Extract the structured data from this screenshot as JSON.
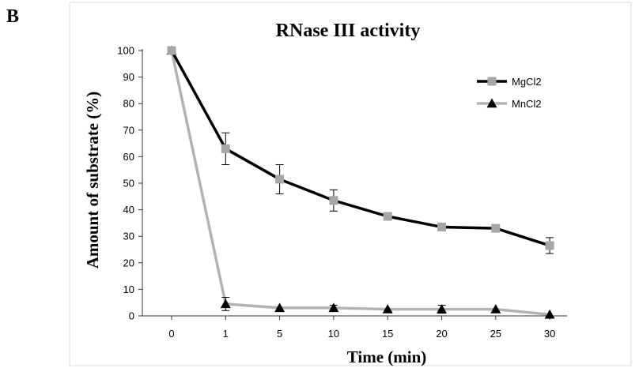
{
  "panel_label": "B",
  "chart_data": {
    "type": "line",
    "title": "RNase III  activity",
    "xlabel": "Time (min)",
    "ylabel": "Amount of substrate (%)",
    "categories": [
      "0",
      "1",
      "5",
      "10",
      "15",
      "20",
      "25",
      "30"
    ],
    "ylim": [
      0,
      100
    ],
    "yticks": [
      0,
      10,
      20,
      30,
      40,
      50,
      60,
      70,
      80,
      90,
      100
    ],
    "grid": false,
    "legend_position": "top-right",
    "series": [
      {
        "name": "MgCl2",
        "line_color": "#000000",
        "marker": "square",
        "marker_color": "#a6a6a6",
        "values": [
          100,
          63,
          51.5,
          43.5,
          37.5,
          33.5,
          33,
          26.5
        ],
        "errors": [
          0,
          6,
          5.5,
          4,
          0,
          0,
          0,
          3
        ]
      },
      {
        "name": "MnCl2",
        "line_color": "#b3b3b3",
        "marker": "triangle",
        "marker_color": "#000000",
        "values": [
          100,
          4.5,
          3,
          3,
          2.5,
          2.5,
          2.5,
          0.5
        ],
        "errors": [
          0,
          2.5,
          0,
          1,
          0,
          1.5,
          0,
          0
        ]
      }
    ]
  }
}
